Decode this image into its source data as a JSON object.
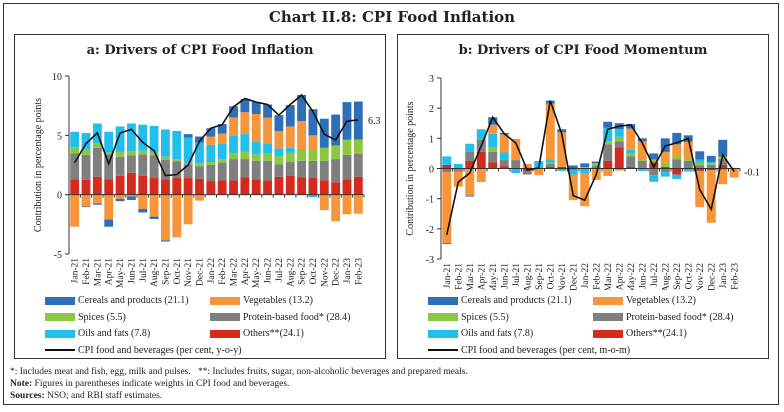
{
  "title": "Chart II.8: CPI Food Inflation",
  "colors": {
    "cereals": "#2f6fb7",
    "vegetables": "#f7953b",
    "spices": "#8dc641",
    "protein": "#7f7f7f",
    "oils": "#22bfec",
    "others": "#d52b1e",
    "line": "#111111"
  },
  "legend": {
    "items": [
      "Cereals and products (21.1)",
      "Vegetables (13.2)",
      "Spices (5.5)",
      "Protein-based food* (28.4)",
      "Oils and fats (7.8)",
      "Others**(24.1)"
    ],
    "line_a": "CPI food and beverages (per cent, y-o-y)",
    "line_b": "CPI food and beverages (per cent, m-o-m)"
  },
  "notes": {
    "footnote": "*: Includes meat and fish, egg, milk and pulses.   **: Includes fruits, sugar, non-alcoholic beverages and prepared meals.",
    "note_label": "Note:",
    "note": " Figures in parentheses indicate weights in CPI food and beverages.",
    "sources_label": "Sources:",
    "sources": " NSO; and RBI staff estimates."
  },
  "chart_data": [
    {
      "type": "bar",
      "subtype": "stacked-bar-with-line",
      "title": "a: Drivers of CPI Food Inflation",
      "ylabel": "Contribution in percentage points",
      "ylim": [
        -5,
        10
      ],
      "yticks": [
        -5,
        0,
        5,
        10
      ],
      "ytick_labels": [
        "-5",
        "0",
        "5",
        "10"
      ],
      "end_label": "6.3",
      "categories": [
        "Jan-21",
        "Feb-21",
        "Mar-21",
        "Apr-21",
        "May-21",
        "Jun-21",
        "Jul-21",
        "Aug-21",
        "Sep-21",
        "Oct-21",
        "Nov-21",
        "Dec-21",
        "Jan-22",
        "Feb-22",
        "Mar-22",
        "Apr-22",
        "May-22",
        "Jun-22",
        "Jul-22",
        "Aug-22",
        "Sep-22",
        "Oct-22",
        "Nov-22",
        "Dec-22",
        "Jan-23",
        "Feb-23"
      ],
      "series": [
        {
          "name": "Cereals and products (21.1)",
          "key": "cereals",
          "values": [
            0,
            -0.05,
            -0.1,
            -0.6,
            -0.2,
            -0.3,
            -0.3,
            -0.2,
            -0.1,
            0.05,
            0.3,
            0.5,
            0.7,
            0.8,
            0.95,
            1.1,
            1.0,
            1.1,
            1.35,
            1.8,
            2.2,
            2.2,
            2.45,
            2.6,
            3.15,
            3.2
          ]
        },
        {
          "name": "Vegetables (13.2)",
          "key": "vegetables",
          "values": [
            -2.7,
            -1.0,
            -0.75,
            -2.1,
            -0.35,
            -0.15,
            -1.2,
            -1.85,
            -3.85,
            -3.6,
            -2.5,
            -0.5,
            0.7,
            0.85,
            1.5,
            1.85,
            2.3,
            2.2,
            1.45,
            1.8,
            2.35,
            1.15,
            -1.3,
            -2.25,
            -1.65,
            -1.6
          ]
        },
        {
          "name": "Spices (5.5)",
          "key": "spices",
          "values": [
            0.5,
            0.45,
            0.4,
            0.15,
            0.4,
            0.35,
            0.3,
            0.25,
            0.25,
            0.2,
            0.15,
            0.25,
            0.25,
            0.3,
            0.5,
            0.6,
            0.55,
            0.6,
            0.7,
            0.8,
            0.95,
            1.0,
            1.1,
            1.15,
            1.25,
            1.2
          ]
        },
        {
          "name": "Protein-based food* (28.4)",
          "key": "protein",
          "values": [
            2.2,
            2.1,
            2.45,
            2.1,
            1.6,
            1.45,
            1.8,
            1.9,
            1.65,
            1.4,
            1.15,
            1.05,
            1.35,
            1.5,
            1.8,
            1.55,
            1.55,
            1.65,
            1.05,
            1.15,
            1.4,
            1.45,
            1.65,
            1.95,
            2.05,
            1.95
          ]
        },
        {
          "name": "Oils and fats (7.8)",
          "key": "oils",
          "values": [
            1.3,
            1.4,
            1.65,
            1.75,
            2.15,
            2.35,
            2.2,
            2.25,
            2.3,
            2.3,
            2.1,
            1.75,
            1.45,
            1.3,
            1.5,
            1.5,
            1.1,
            0.85,
            0.65,
            0.4,
            0.05,
            -0.2,
            0,
            0,
            0.05,
            0
          ]
        },
        {
          "name": "Others**(24.1)",
          "key": "others",
          "values": [
            1.3,
            1.25,
            1.5,
            1.3,
            1.6,
            1.85,
            1.6,
            1.4,
            1.3,
            1.4,
            1.4,
            1.35,
            1.15,
            1.2,
            1.2,
            1.45,
            1.3,
            1.2,
            1.5,
            1.6,
            1.45,
            1.4,
            1.2,
            1.05,
            1.3,
            1.5
          ]
        }
      ],
      "line": {
        "name": "CPI food and beverages (per cent, y-o-y)",
        "values": [
          2.7,
          4.3,
          5.2,
          2.6,
          5.2,
          5.5,
          4.4,
          3.7,
          1.6,
          1.7,
          2.5,
          4.5,
          5.6,
          5.9,
          7.4,
          8.1,
          7.8,
          7.6,
          6.7,
          7.6,
          8.4,
          7.0,
          5.1,
          4.6,
          6.2,
          6.3
        ]
      }
    },
    {
      "type": "bar",
      "subtype": "stacked-bar-with-line",
      "title": "b: Drivers of CPI Food Momentum",
      "ylabel": "Contribution in percentage points",
      "ylim": [
        -3,
        3
      ],
      "yticks": [
        -3,
        -2,
        -1,
        0,
        1,
        2,
        3
      ],
      "ytick_labels": [
        "-3",
        "-2",
        "-1",
        "0",
        "1",
        "2",
        "3"
      ],
      "end_label": "-0.1",
      "categories": [
        "Jan-21",
        "Feb-21",
        "Mar-21",
        "Apr-21",
        "May-21",
        "Jun-21",
        "Jul-21",
        "Aug-21",
        "Sep-21",
        "Oct-21",
        "Nov-21",
        "Dec-21",
        "Jan-22",
        "Feb-22",
        "Mar-22",
        "Apr-22",
        "May-22",
        "Jun-22",
        "Jul-22",
        "Aug-22",
        "Sep-22",
        "Oct-22",
        "Nov-22",
        "Dec-22",
        "Jan-23",
        "Feb-23"
      ],
      "series": [
        {
          "name": "Cereals and products (21.1)",
          "key": "cereals",
          "values": [
            -0.03,
            0,
            -0.03,
            0,
            0.25,
            0.05,
            0,
            0,
            0,
            0.1,
            0.1,
            0.05,
            0.12,
            0.05,
            0.2,
            0.2,
            0.15,
            0.1,
            0.2,
            0.45,
            0.38,
            0.22,
            0.27,
            0.2,
            0.55,
            0.02
          ]
        },
        {
          "name": "Vegetables (13.2)",
          "key": "vegetables",
          "values": [
            -2.35,
            -0.5,
            -0.9,
            -0.45,
            0.3,
            0.6,
            0.7,
            0.1,
            -0.22,
            1.85,
            1.15,
            -0.85,
            -1.1,
            -0.38,
            -0.25,
            -0.07,
            0.7,
            0.6,
            0,
            0.35,
            0.4,
            0.55,
            -1.2,
            -1.75,
            -0.47,
            -0.3
          ]
        },
        {
          "name": "Spices (5.5)",
          "key": "spices",
          "values": [
            0,
            0,
            0,
            0,
            0.15,
            0,
            0,
            0,
            0,
            0.05,
            0,
            0,
            0.05,
            0.1,
            0.1,
            0.15,
            0.1,
            0.05,
            0.1,
            0.15,
            0.1,
            0.08,
            0.1,
            0.05,
            0.08,
            0
          ]
        },
        {
          "name": "Protein-based food* (28.4)",
          "key": "protein",
          "values": [
            -0.12,
            -0.1,
            0.3,
            0.4,
            0.35,
            0.2,
            0.28,
            -0.12,
            0,
            0.1,
            0,
            -0.05,
            0,
            0.08,
            0.55,
            0.2,
            0.35,
            0.25,
            -0.22,
            -0.12,
            0.3,
            0.25,
            0.1,
            0.12,
            0.2,
            0
          ]
        },
        {
          "name": "Oils and fats (7.8)",
          "key": "oils",
          "values": [
            0.28,
            0.15,
            0.27,
            0.35,
            0.45,
            0.25,
            -0.15,
            0.05,
            0.25,
            0.1,
            -0.08,
            -0.15,
            -0.15,
            0,
            0.45,
            0.25,
            0.12,
            -0.08,
            -0.22,
            -0.15,
            -0.15,
            -0.1,
            0.1,
            0.05,
            -0.05,
            0
          ]
        },
        {
          "name": "Others**(24.1)",
          "key": "others",
          "values": [
            0.12,
            0,
            0.25,
            0.55,
            0.2,
            0.08,
            0,
            -0.08,
            0,
            0.05,
            0.05,
            0.05,
            0,
            0,
            0.25,
            0.7,
            0.05,
            0,
            0.2,
            0.05,
            -0.2,
            0,
            -0.08,
            -0.05,
            0.12,
            0
          ]
        }
      ],
      "line": {
        "name": "CPI food and beverages (per cent, m-o-m)",
        "values": [
          -2.2,
          -0.45,
          -0.15,
          0.75,
          1.7,
          1.15,
          0.85,
          -0.05,
          0.02,
          2.25,
          1.15,
          -0.9,
          -1.05,
          -0.2,
          1.3,
          1.4,
          1.45,
          0.85,
          0.05,
          0.75,
          0.85,
          1.0,
          -0.7,
          -1.35,
          0.45,
          -0.1
        ]
      }
    }
  ]
}
